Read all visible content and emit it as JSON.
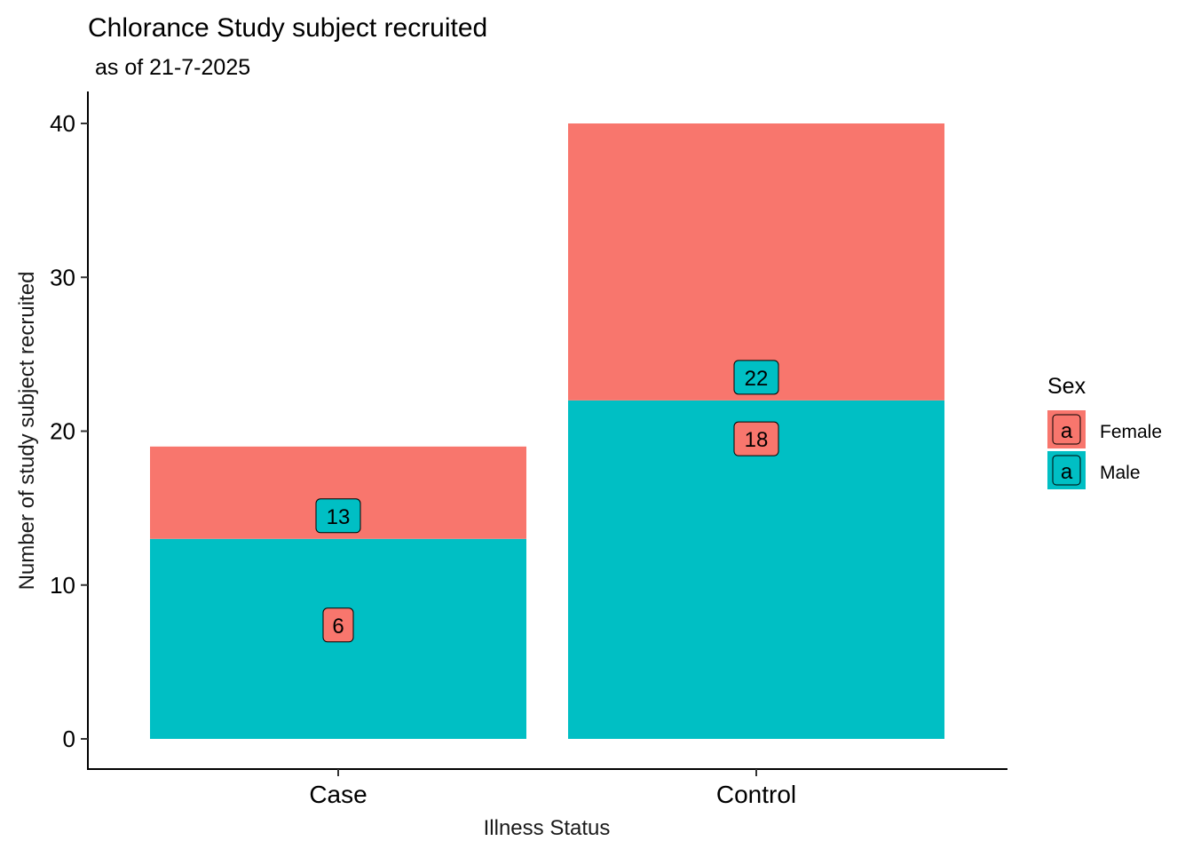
{
  "chart_data": {
    "type": "bar",
    "stacked": true,
    "title": "Chlorance Study subject recruited",
    "subtitle": "as of 21-7-2025",
    "xlabel": "Illness Status",
    "ylabel": "Number of study subject recruited",
    "categories": [
      "Case",
      "Control"
    ],
    "ylim": [
      0,
      42
    ],
    "yticks": [
      0,
      10,
      20,
      30,
      40
    ],
    "grid": false,
    "legend": {
      "title": "Sex",
      "position": "right",
      "key_glyph": "a",
      "entries": [
        "Female",
        "Male"
      ]
    },
    "series": [
      {
        "name": "Male",
        "values": [
          13,
          22
        ],
        "color": "#00BFC4",
        "stack_order": "bottom"
      },
      {
        "name": "Female",
        "values": [
          6,
          18
        ],
        "color": "#F8766D",
        "stack_order": "top"
      }
    ],
    "data_labels": [
      {
        "category": "Case",
        "text": "13",
        "y": 14.5,
        "fill": "#00BFC4"
      },
      {
        "category": "Case",
        "text": "6",
        "y": 7.4,
        "fill": "#F8766D"
      },
      {
        "category": "Control",
        "text": "22",
        "y": 23.5,
        "fill": "#00BFC4"
      },
      {
        "category": "Control",
        "text": "18",
        "y": 19.5,
        "fill": "#F8766D"
      }
    ]
  }
}
